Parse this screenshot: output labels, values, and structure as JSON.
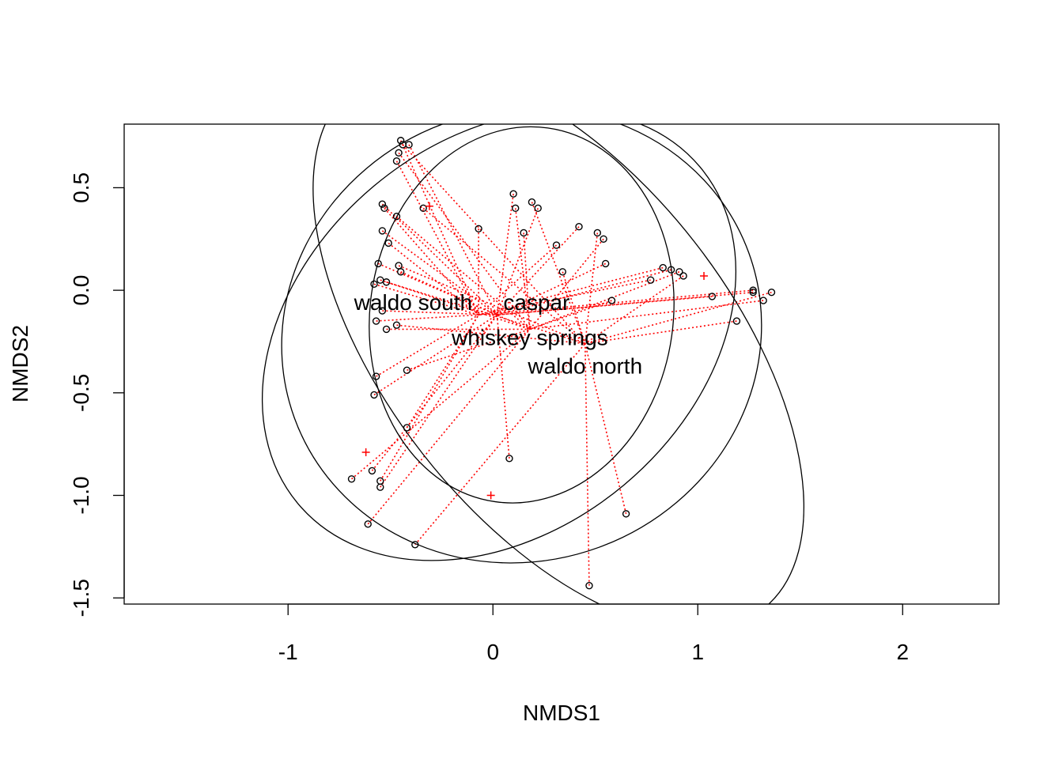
{
  "chart_data": {
    "type": "scatter",
    "title": "",
    "xlabel": "NMDS1",
    "ylabel": "NMDS2",
    "xlim": [
      -1.8,
      2.47
    ],
    "ylim": [
      -1.53,
      0.81
    ],
    "xticks": [
      {
        "v": -1,
        "label": "-1"
      },
      {
        "v": 0,
        "label": "0"
      },
      {
        "v": 1,
        "label": "1"
      },
      {
        "v": 2,
        "label": "2"
      }
    ],
    "yticks": [
      {
        "v": -1.5,
        "label": "-1.5"
      },
      {
        "v": -1.0,
        "label": "-1.0"
      },
      {
        "v": -0.5,
        "label": "-0.5"
      },
      {
        "v": 0.0,
        "label": "0.0"
      },
      {
        "v": 0.5,
        "label": "0.5"
      }
    ],
    "colors": {
      "points": "#000000",
      "spider": "#ff0000",
      "ellipse": "#000000",
      "species": "#ff0000"
    },
    "groups": [
      {
        "name": "waldo south",
        "label": "waldo south",
        "center": [
          -0.07,
          -0.12
        ]
      },
      {
        "name": "caspar",
        "label": "caspar",
        "center": [
          0.02,
          -0.12
        ]
      },
      {
        "name": "whiskey springs",
        "label": "whiskey springs",
        "center": [
          0.18,
          -0.19
        ]
      },
      {
        "name": "waldo north",
        "label": "waldo north",
        "center": [
          0.45,
          -0.26
        ]
      }
    ],
    "ellipses": [
      {
        "group": "caspar",
        "center": [
          0.14,
          -0.12
        ],
        "a": 0.74,
        "b": 0.92,
        "angle": -8
      },
      {
        "group": "waldo south",
        "center": [
          0.14,
          -0.22
        ],
        "a": 1.18,
        "b": 1.1,
        "angle": 20
      },
      {
        "group": "whiskey springs",
        "center": [
          0.03,
          -0.22
        ],
        "a": 1.28,
        "b": 0.95,
        "angle": 40
      },
      {
        "group": "waldo north",
        "center": [
          0.32,
          -0.28
        ],
        "a": 1.62,
        "b": 0.84,
        "angle": -52
      }
    ],
    "points": [
      {
        "x": -0.45,
        "y": 0.73,
        "g": 0
      },
      {
        "x": -0.41,
        "y": 0.71,
        "g": 1
      },
      {
        "x": -0.46,
        "y": 0.67,
        "g": 2
      },
      {
        "x": -0.47,
        "y": 0.63,
        "g": 0
      },
      {
        "x": -0.44,
        "y": 0.71,
        "g": 3
      },
      {
        "x": 0.1,
        "y": 0.47,
        "g": 1
      },
      {
        "x": 0.11,
        "y": 0.4,
        "g": 2
      },
      {
        "x": 0.19,
        "y": 0.43,
        "g": 3
      },
      {
        "x": 0.22,
        "y": 0.4,
        "g": 1
      },
      {
        "x": -0.07,
        "y": 0.3,
        "g": 0
      },
      {
        "x": 0.15,
        "y": 0.28,
        "g": 2
      },
      {
        "x": 0.42,
        "y": 0.31,
        "g": 1
      },
      {
        "x": 0.51,
        "y": 0.28,
        "g": 3
      },
      {
        "x": 0.54,
        "y": 0.25,
        "g": 2
      },
      {
        "x": 0.31,
        "y": 0.22,
        "g": 0
      },
      {
        "x": 0.55,
        "y": 0.13,
        "g": 1
      },
      {
        "x": 0.34,
        "y": 0.09,
        "g": 3
      },
      {
        "x": 0.83,
        "y": 0.11,
        "g": 0
      },
      {
        "x": 0.87,
        "y": 0.1,
        "g": 1
      },
      {
        "x": 0.91,
        "y": 0.09,
        "g": 2
      },
      {
        "x": 0.93,
        "y": 0.07,
        "g": 3
      },
      {
        "x": 0.77,
        "y": 0.05,
        "g": 0
      },
      {
        "x": 0.58,
        "y": -0.05,
        "g": 2
      },
      {
        "x": -0.54,
        "y": 0.42,
        "g": 1
      },
      {
        "x": -0.53,
        "y": 0.4,
        "g": 0
      },
      {
        "x": -0.47,
        "y": 0.36,
        "g": 2
      },
      {
        "x": -0.34,
        "y": 0.4,
        "g": 3
      },
      {
        "x": -0.54,
        "y": 0.29,
        "g": 1
      },
      {
        "x": -0.51,
        "y": 0.23,
        "g": 0
      },
      {
        "x": -0.56,
        "y": 0.13,
        "g": 2
      },
      {
        "x": -0.46,
        "y": 0.12,
        "g": 3
      },
      {
        "x": -0.45,
        "y": 0.09,
        "g": 1
      },
      {
        "x": -0.58,
        "y": 0.03,
        "g": 0
      },
      {
        "x": -0.55,
        "y": 0.05,
        "g": 2
      },
      {
        "x": -0.52,
        "y": 0.04,
        "g": 3
      },
      {
        "x": -0.54,
        "y": -0.1,
        "g": 1
      },
      {
        "x": -0.57,
        "y": -0.15,
        "g": 0
      },
      {
        "x": -0.52,
        "y": -0.19,
        "g": 2
      },
      {
        "x": -0.47,
        "y": -0.17,
        "g": 3
      },
      {
        "x": 1.27,
        "y": 0.0,
        "g": 0
      },
      {
        "x": 1.27,
        "y": -0.01,
        "g": 1
      },
      {
        "x": 1.36,
        "y": -0.01,
        "g": 3
      },
      {
        "x": 1.32,
        "y": -0.05,
        "g": 2
      },
      {
        "x": 1.07,
        "y": -0.03,
        "g": 1
      },
      {
        "x": 1.19,
        "y": -0.15,
        "g": 3
      },
      {
        "x": -0.57,
        "y": -0.42,
        "g": 0
      },
      {
        "x": -0.58,
        "y": -0.51,
        "g": 1
      },
      {
        "x": -0.42,
        "y": -0.39,
        "g": 2
      },
      {
        "x": -0.42,
        "y": -0.67,
        "g": 0
      },
      {
        "x": -0.59,
        "y": -0.88,
        "g": 1
      },
      {
        "x": -0.69,
        "y": -0.92,
        "g": 2
      },
      {
        "x": -0.55,
        "y": -0.93,
        "g": 0
      },
      {
        "x": -0.55,
        "y": -0.96,
        "g": 1
      },
      {
        "x": -0.61,
        "y": -1.14,
        "g": 2
      },
      {
        "x": -0.38,
        "y": -1.24,
        "g": 3
      },
      {
        "x": 0.08,
        "y": -0.82,
        "g": 1
      },
      {
        "x": 0.65,
        "y": -1.09,
        "g": 3
      },
      {
        "x": 0.47,
        "y": -1.44,
        "g": 3
      }
    ],
    "species": [
      {
        "x": -0.31,
        "y": 0.41
      },
      {
        "x": 1.03,
        "y": 0.07
      },
      {
        "x": -0.62,
        "y": -0.79
      },
      {
        "x": -0.01,
        "y": -1.0
      }
    ]
  }
}
